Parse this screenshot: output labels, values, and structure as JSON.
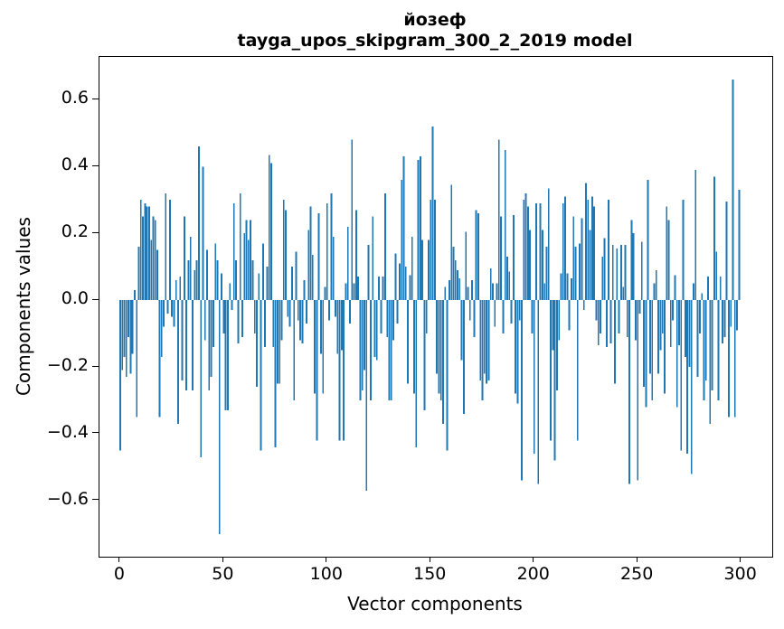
{
  "figure": {
    "title": "йозеф",
    "subtitle": "tayga_upos_skipgram_300_2_2019 model",
    "background": "#ffffff",
    "text_color": "#000000",
    "spine_color": "#000000"
  },
  "chart_data": {
    "type": "bar",
    "title": "йозеф",
    "subtitle": "tayga_upos_skipgram_300_2_2019 model",
    "xlabel": "Vector components",
    "ylabel": "Components values",
    "bar_color": "#1f77b4",
    "grid": false,
    "legend": null,
    "bar_width": 0.8,
    "xlim": [
      -10,
      315
    ],
    "ylim": [
      -0.768,
      0.728
    ],
    "x_ticks": {
      "values": [
        0,
        50,
        100,
        150,
        200,
        250,
        300
      ],
      "labels": [
        "0",
        "50",
        "100",
        "150",
        "200",
        "250",
        "300"
      ]
    },
    "y_ticks": {
      "values": [
        0.6,
        0.4,
        0.2,
        0.0,
        -0.2,
        -0.4,
        -0.6
      ],
      "labels": [
        "0.6",
        "0.4",
        "0.2",
        "0.0",
        "−0.2",
        "−0.4",
        "−0.6"
      ]
    },
    "x_description": "vector component index 0..299",
    "values": [
      -0.45,
      -0.21,
      -0.17,
      -0.23,
      -0.11,
      -0.22,
      -0.16,
      0.03,
      -0.35,
      0.16,
      0.3,
      0.25,
      0.29,
      0.28,
      0.28,
      0.18,
      0.25,
      0.24,
      0.15,
      -0.35,
      -0.17,
      -0.08,
      0.32,
      -0.04,
      0.3,
      -0.05,
      -0.08,
      0.06,
      -0.37,
      0.07,
      -0.24,
      0.25,
      -0.27,
      0.12,
      0.19,
      -0.27,
      0.09,
      0.12,
      0.46,
      -0.47,
      0.4,
      -0.12,
      0.15,
      -0.27,
      -0.23,
      -0.14,
      0.17,
      0.12,
      -0.7,
      0.08,
      -0.1,
      -0.33,
      -0.33,
      0.05,
      -0.03,
      0.29,
      0.12,
      -0.13,
      0.32,
      -0.11,
      0.2,
      0.24,
      0.18,
      0.24,
      0.12,
      -0.1,
      -0.26,
      0.08,
      -0.45,
      0.17,
      -0.14,
      0.1,
      0.435,
      0.41,
      -0.14,
      -0.44,
      -0.25,
      -0.25,
      -0.12,
      0.3,
      0.27,
      -0.05,
      -0.08,
      0.1,
      -0.3,
      0.145,
      -0.06,
      -0.12,
      -0.13,
      0.06,
      -0.07,
      0.21,
      0.28,
      0.135,
      -0.28,
      -0.42,
      0.26,
      -0.16,
      -0.28,
      0.04,
      0.29,
      -0.06,
      0.32,
      0.19,
      -0.05,
      -0.16,
      -0.42,
      -0.15,
      -0.42,
      0.05,
      0.22,
      -0.07,
      0.48,
      0.05,
      0.27,
      0.07,
      -0.3,
      -0.27,
      -0.21,
      -0.57,
      0.165,
      -0.3,
      0.25,
      -0.17,
      -0.18,
      0.07,
      -0.1,
      0.07,
      0.32,
      -0.11,
      -0.3,
      -0.3,
      -0.12,
      0.14,
      -0.07,
      0.11,
      0.36,
      0.43,
      0.1,
      -0.25,
      0.075,
      0.19,
      -0.28,
      -0.44,
      0.42,
      0.43,
      0.18,
      -0.33,
      -0.1,
      0.18,
      0.3,
      0.52,
      0.3,
      -0.22,
      -0.28,
      -0.3,
      -0.37,
      0.04,
      -0.45,
      0.06,
      0.345,
      0.16,
      0.12,
      0.09,
      0.065,
      -0.18,
      -0.34,
      0.205,
      0.04,
      -0.06,
      0.06,
      -0.11,
      0.27,
      0.26,
      -0.24,
      -0.3,
      -0.22,
      -0.25,
      -0.24,
      0.095,
      0.05,
      -0.08,
      0.05,
      0.48,
      0.25,
      -0.1,
      0.45,
      0.13,
      0.085,
      -0.07,
      0.255,
      -0.28,
      -0.31,
      -0.06,
      -0.54,
      0.3,
      0.32,
      0.28,
      0.21,
      -0.1,
      -0.46,
      0.29,
      -0.55,
      0.29,
      0.21,
      0.05,
      0.16,
      0.335,
      -0.42,
      -0.15,
      -0.48,
      -0.27,
      -0.12,
      0.08,
      0.29,
      0.31,
      0.08,
      -0.09,
      0.065,
      0.25,
      0.16,
      -0.42,
      0.17,
      0.245,
      -0.03,
      0.35,
      0.3,
      0.21,
      0.31,
      0.28,
      -0.06,
      -0.135,
      -0.1,
      0.13,
      0.185,
      -0.14,
      0.3,
      -0.13,
      0.165,
      -0.25,
      0.155,
      -0.1,
      0.165,
      0.04,
      0.165,
      -0.11,
      -0.55,
      0.24,
      0.2,
      -0.12,
      -0.54,
      -0.04,
      0.175,
      -0.26,
      -0.32,
      0.36,
      -0.22,
      -0.3,
      0.05,
      0.09,
      -0.22,
      -0.15,
      -0.1,
      -0.28,
      0.28,
      0.24,
      -0.14,
      -0.06,
      0.075,
      -0.32,
      -0.135,
      -0.45,
      0.3,
      -0.17,
      -0.46,
      -0.2,
      -0.52,
      0.05,
      0.39,
      -0.23,
      -0.1,
      0.02,
      -0.3,
      -0.24,
      0.07,
      -0.37,
      -0.27,
      0.37,
      0.145,
      -0.3,
      0.07,
      -0.13,
      -0.11,
      0.295,
      -0.35,
      -0.08,
      0.66,
      -0.35,
      -0.09,
      0.33
    ]
  }
}
